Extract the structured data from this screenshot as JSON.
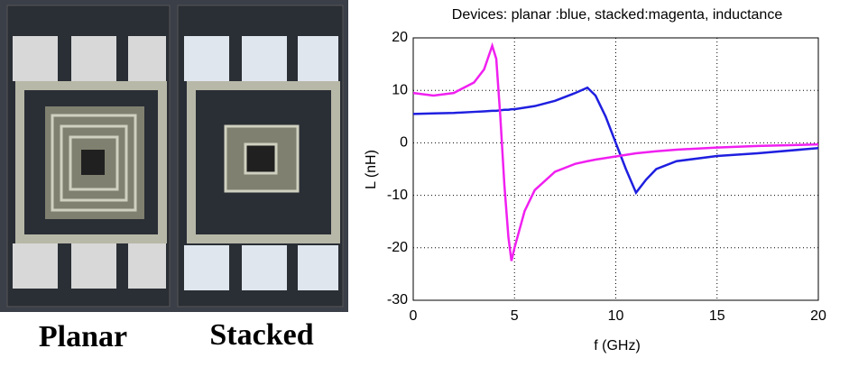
{
  "photo": {
    "labels": [
      "Planar",
      "Stacked"
    ]
  },
  "chart_data": {
    "type": "line",
    "title": "Devices: planar :blue, stacked:magenta, inductance",
    "x_label": "f (GHz)",
    "y_label": "L (nH)",
    "x": [
      0,
      1,
      2,
      3,
      3.5,
      3.9,
      4.1,
      4.3,
      4.5,
      4.7,
      4.85,
      5,
      5.5,
      6,
      7,
      8,
      8.6,
      9,
      9.5,
      10,
      10.5,
      11,
      11.5,
      12,
      13,
      15,
      17,
      20
    ],
    "series": [
      {
        "color": "#1f1fe0",
        "values": [
          5.5,
          5.6,
          5.7,
          5.9,
          6,
          6.1,
          6.1,
          6.2,
          6.3,
          6.3,
          6.4,
          6.4,
          6.7,
          7,
          8,
          9.5,
          10.5,
          9,
          5,
          0,
          -5,
          -9.5,
          -7,
          -5,
          -3.5,
          -2.5,
          -2,
          -1
        ]
      },
      {
        "color": "#f020f0",
        "values": [
          9.5,
          9,
          9.5,
          11.5,
          14,
          18.5,
          16,
          5,
          -8,
          -18,
          -22.5,
          -20,
          -13,
          -9,
          -5.5,
          -4,
          -3.5,
          -3.2,
          -2.9,
          -2.6,
          -2.3,
          -2,
          -1.8,
          -1.6,
          -1.3,
          -0.9,
          -0.6,
          -0.3
        ]
      }
    ],
    "xlim": [
      0,
      20
    ],
    "ylim": [
      -30,
      20
    ],
    "xticks": [
      0,
      5,
      10,
      15,
      20
    ],
    "yticks": [
      -30,
      -20,
      -10,
      0,
      10,
      20
    ],
    "grid": true
  }
}
